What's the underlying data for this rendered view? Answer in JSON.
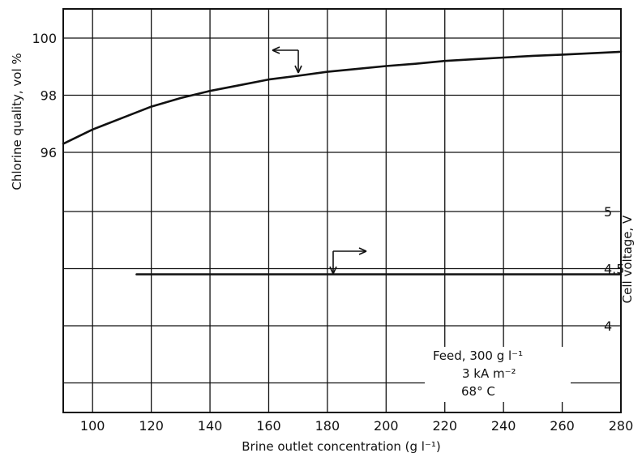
{
  "chart_data": {
    "type": "line",
    "title": "",
    "xlabel": "Brine outlet concentration (g l⁻¹)",
    "xlim": [
      90,
      280
    ],
    "x_ticks": [
      "100",
      "120",
      "140",
      "160",
      "180",
      "200",
      "220",
      "240",
      "260",
      "280"
    ],
    "y_left": {
      "label": "Chlorine quality, vol %",
      "ticks": [
        "96",
        "98",
        "100"
      ],
      "range": [
        96,
        100
      ]
    },
    "y_right": {
      "label": "Cell voltage, V",
      "ticks": [
        "4",
        "4.5",
        "5"
      ],
      "range": [
        4,
        5
      ]
    },
    "grid": true,
    "series": [
      {
        "axis": "left",
        "x": [
          90,
          100,
          110,
          120,
          130,
          140,
          150,
          160,
          170,
          180,
          190,
          200,
          210,
          220,
          230,
          240,
          250,
          260,
          270,
          280
        ],
        "values": [
          96.3,
          96.8,
          97.2,
          97.6,
          97.9,
          98.15,
          98.35,
          98.55,
          98.68,
          98.82,
          98.92,
          99.02,
          99.1,
          99.2,
          99.26,
          99.32,
          99.38,
          99.42,
          99.47,
          99.52
        ]
      },
      {
        "axis": "right",
        "x": [
          115,
          280
        ],
        "values": [
          4.45,
          4.45
        ]
      }
    ],
    "annotations": {
      "note_lines": [
        "Feed, 300 g l⁻¹",
        "3 kA m⁻²",
        "68° C"
      ]
    }
  }
}
